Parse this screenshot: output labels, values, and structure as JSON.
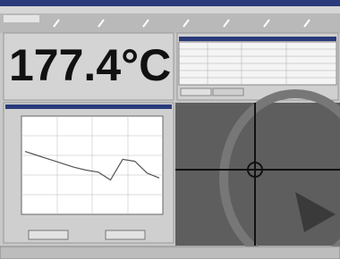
{
  "display": {
    "temperature": "177.4°C"
  },
  "trend": {
    "ylim": [
      0,
      10
    ],
    "values": [
      6.4,
      6.0,
      5.6,
      5.2,
      4.8,
      4.5,
      4.3,
      3.5,
      5.6,
      5.4,
      4.2,
      3.7
    ]
  }
}
